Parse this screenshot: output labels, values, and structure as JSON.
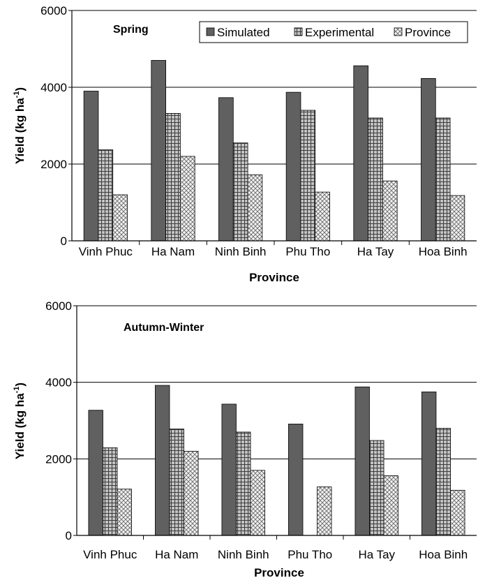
{
  "chart_data": [
    {
      "type": "bar",
      "title": "Spring",
      "xlabel": "Province",
      "ylabel": "Yield (kg ha",
      "ylabel_sup": "-1",
      "ylabel_close": ")",
      "ylim": [
        0,
        6000
      ],
      "yticks": [
        "0",
        "2000",
        "4000",
        "6000"
      ],
      "grid": true,
      "legend": "top-right",
      "categories": [
        "Vinh Phuc",
        "Ha Nam",
        "Ninh Binh",
        "Phu Tho",
        "Ha Tay",
        "Hoa Binh"
      ],
      "series": [
        {
          "name": "Simulated",
          "values": [
            3900,
            4700,
            3730,
            3870,
            4560,
            4230
          ],
          "color": "#606060",
          "pattern": "solid"
        },
        {
          "name": "Experimental",
          "values": [
            2370,
            3320,
            2550,
            3400,
            3200,
            3200
          ],
          "color": "#9a9a9a",
          "pattern": "grid"
        },
        {
          "name": "Province",
          "values": [
            1200,
            2200,
            1720,
            1270,
            1560,
            1180
          ],
          "color": "#d8d8d8",
          "pattern": "cross"
        }
      ]
    },
    {
      "type": "bar",
      "title": "Autumn-Winter",
      "xlabel": "Province",
      "ylabel": "Yield (kg ha",
      "ylabel_sup": "-1",
      "ylabel_close": ")",
      "ylim": [
        0,
        6000
      ],
      "yticks": [
        "0",
        "2000",
        "4000",
        "6000"
      ],
      "grid": true,
      "legend": "none",
      "categories": [
        "Vinh Phuc",
        "Ha Nam",
        "Ninh Binh",
        "Phu Tho",
        "Ha Tay",
        "Hoa Binh"
      ],
      "series": [
        {
          "name": "Simulated",
          "values": [
            3270,
            3920,
            3430,
            2910,
            3880,
            3750
          ],
          "color": "#606060",
          "pattern": "solid"
        },
        {
          "name": "Experimental",
          "values": [
            2290,
            2780,
            2700,
            null,
            2480,
            2800
          ],
          "color": "#9a9a9a",
          "pattern": "grid"
        },
        {
          "name": "Province",
          "values": [
            1210,
            2200,
            1700,
            1270,
            1560,
            1180
          ],
          "color": "#d8d8d8",
          "pattern": "cross"
        }
      ]
    }
  ]
}
